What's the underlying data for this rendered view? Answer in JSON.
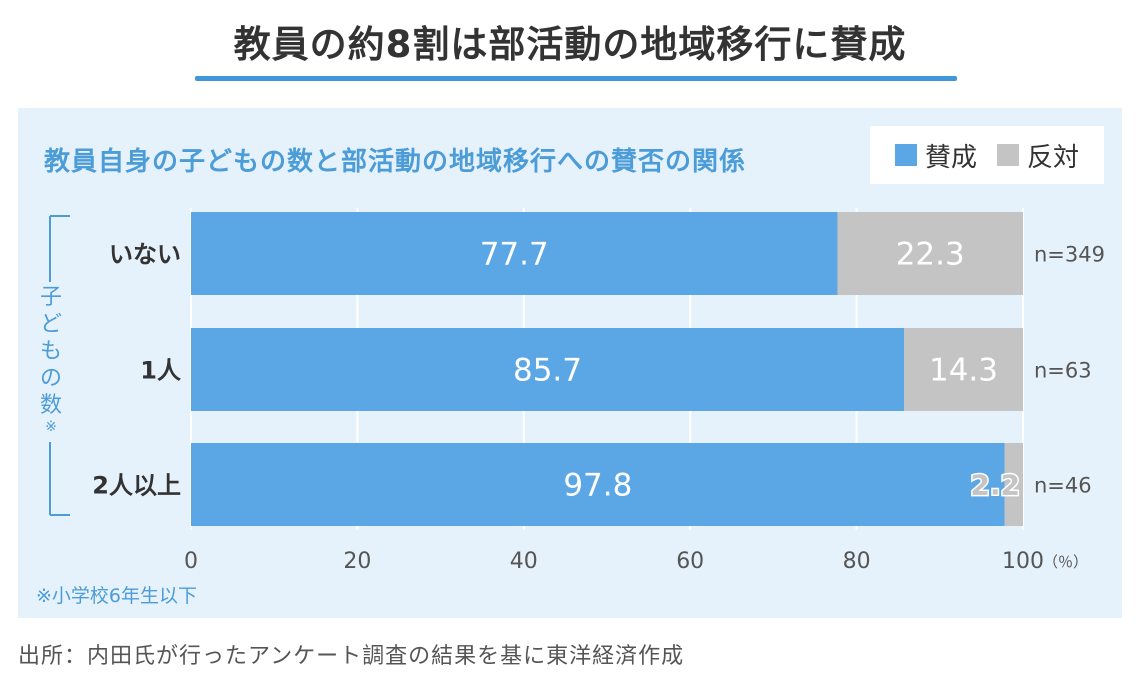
{
  "header": {
    "title": "教員の約8割は部活動の地域移行に賛成"
  },
  "panel": {
    "subtitle": "教員自身の子どもの数と部活動の地域移行への賛否の関係",
    "note": "※小学校6年生以下",
    "y_group_label": [
      "子",
      "ど",
      "も",
      "の",
      "数",
      "※"
    ]
  },
  "legend": [
    {
      "label": "賛成",
      "color": "#5ba7e6"
    },
    {
      "label": "反対",
      "color": "#c4c4c4"
    }
  ],
  "footer": {
    "source": "出所：内田氏が行ったアンケート調査の結果を基に東洋経済作成"
  },
  "chart_data": {
    "type": "bar",
    "orientation": "horizontal",
    "stacked": true,
    "categories": [
      "いない",
      "1人",
      "2人以上"
    ],
    "series": [
      {
        "name": "賛成",
        "values": [
          77.7,
          85.7,
          97.8
        ],
        "color": "#5ba7e6"
      },
      {
        "name": "反対",
        "values": [
          22.3,
          14.3,
          2.2
        ],
        "color": "#c4c4c4"
      }
    ],
    "value_labels": [
      [
        "77.7",
        "85.7",
        "97.8"
      ],
      [
        "22.3",
        "14.3",
        "2.2"
      ]
    ],
    "sample_sizes": [
      "n=349",
      "n=63",
      "n=46"
    ],
    "xlim": [
      0,
      100
    ],
    "xticks": [
      0,
      20,
      40,
      60,
      80,
      100
    ],
    "xunit": "（％）",
    "grid": true
  }
}
